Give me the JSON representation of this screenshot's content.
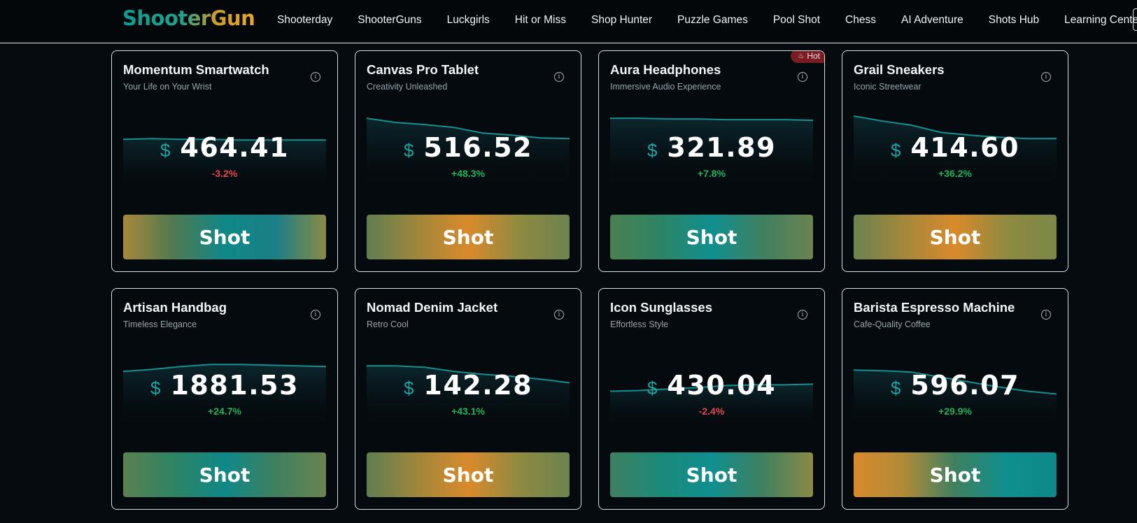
{
  "app": {
    "logo": "ShooterGun"
  },
  "nav": {
    "items": [
      {
        "label": "Shooterday"
      },
      {
        "label": "ShooterGuns"
      },
      {
        "label": "Luckgirls"
      },
      {
        "label": "Hit or Miss"
      },
      {
        "label": "Shop Hunter"
      },
      {
        "label": "Puzzle Games"
      },
      {
        "label": "Pool Shot"
      },
      {
        "label": "Chess"
      },
      {
        "label": "AI Adventure"
      },
      {
        "label": "Shots Hub"
      },
      {
        "label": "Learning Center"
      }
    ]
  },
  "colors": {
    "accent_teal": "#0f8f8f",
    "accent_orange": "#d98a2b",
    "up": "#24b35a",
    "down": "#e5484d"
  },
  "icons": {
    "info": "info-icon",
    "hot": "flame-icon"
  },
  "products": [
    {
      "title": "Momentum Smartwatch",
      "subtitle": "Your Life on Your Wrist",
      "currency": "$",
      "price": "464.41",
      "change": "-3.2%",
      "direction": "down",
      "hot": false,
      "button": "Shot",
      "gradient": [
        "#a7883a",
        "#4f7a52",
        "#0f8888",
        "#1a7f86",
        "#8a8a45"
      ],
      "trend": [
        0.62,
        0.63,
        0.62,
        0.62,
        0.61,
        0.61,
        0.61,
        0.61
      ]
    },
    {
      "title": "Canvas Pro Tablet",
      "subtitle": "Creativity Unleashed",
      "currency": "$",
      "price": "516.52",
      "change": "+48.3%",
      "direction": "up",
      "hot": false,
      "button": "Shot",
      "gradient": [
        "#5f7e50",
        "#a0873a",
        "#d98a2b",
        "#8f8a40",
        "#6b8350"
      ],
      "trend": [
        0.92,
        0.86,
        0.83,
        0.79,
        0.71,
        0.68,
        0.64,
        0.63
      ]
    },
    {
      "title": "Aura Headphones",
      "subtitle": "Immersive Audio Experience",
      "currency": "$",
      "price": "321.89",
      "change": "+7.8%",
      "direction": "up",
      "hot": true,
      "hot_label": "Hot",
      "button": "Shot",
      "gradient": [
        "#4a8050",
        "#2d8465",
        "#0f8f8f",
        "#3f8060",
        "#6b8350"
      ],
      "trend": [
        0.92,
        0.92,
        0.91,
        0.91,
        0.9,
        0.9,
        0.9,
        0.89
      ]
    },
    {
      "title": "Grail Sneakers",
      "subtitle": "Iconic Streetwear",
      "currency": "$",
      "price": "414.60",
      "change": "+36.2%",
      "direction": "up",
      "hot": false,
      "button": "Shot",
      "gradient": [
        "#6b8350",
        "#a4873a",
        "#d98a2b",
        "#8f8a40",
        "#7c8748"
      ],
      "trend": [
        0.95,
        0.88,
        0.82,
        0.72,
        0.68,
        0.65,
        0.63,
        0.63
      ]
    },
    {
      "title": "Artisan Handbag",
      "subtitle": "Timeless Elegance",
      "currency": "$",
      "price": "1881.53",
      "change": "+24.7%",
      "direction": "up",
      "hot": false,
      "button": "Shot",
      "gradient": [
        "#5a8050",
        "#2d8465",
        "#0f8888",
        "#3f8060",
        "#6b8350"
      ],
      "trend": [
        0.7,
        0.73,
        0.77,
        0.8,
        0.8,
        0.79,
        0.78,
        0.77
      ]
    },
    {
      "title": "Nomad Denim Jacket",
      "subtitle": "Retro Cool",
      "currency": "$",
      "price": "142.28",
      "change": "+43.1%",
      "direction": "up",
      "hot": false,
      "button": "Shot",
      "gradient": [
        "#5f7e50",
        "#a0873a",
        "#d98a2b",
        "#8f8a40",
        "#6b8350"
      ],
      "trend": [
        0.78,
        0.78,
        0.76,
        0.7,
        0.66,
        0.63,
        0.59,
        0.54
      ]
    },
    {
      "title": "Icon Sunglasses",
      "subtitle": "Effortless Style",
      "currency": "$",
      "price": "430.04",
      "change": "-2.4%",
      "direction": "down",
      "hot": false,
      "button": "Shot",
      "gradient": [
        "#3f8060",
        "#1a8a7a",
        "#0f8f8f",
        "#3f8060",
        "#8a8a45"
      ],
      "trend": [
        0.42,
        0.43,
        0.45,
        0.47,
        0.5,
        0.51,
        0.51,
        0.52
      ]
    },
    {
      "title": "Barista Espresso Machine",
      "subtitle": "Cafe-Quality Coffee",
      "currency": "$",
      "price": "596.07",
      "change": "+29.9%",
      "direction": "up",
      "hot": false,
      "button": "Shot",
      "gradient": [
        "#d98a2b",
        "#b08a38",
        "#3f8060",
        "#0f8f8f",
        "#0f8888"
      ],
      "trend": [
        0.72,
        0.71,
        0.69,
        0.62,
        0.55,
        0.48,
        0.42,
        0.38
      ]
    }
  ]
}
